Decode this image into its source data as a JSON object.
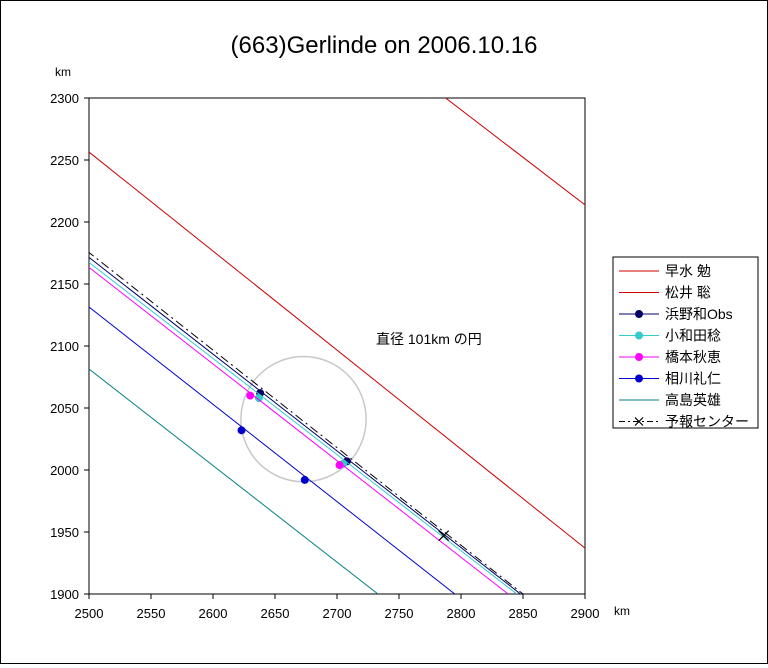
{
  "chart_data": {
    "type": "line",
    "title": "(663)Gerlinde on 2006.10.16",
    "x_unit": "km",
    "y_unit": "km",
    "xlim": [
      2500,
      2900
    ],
    "ylim": [
      1900,
      2300
    ],
    "x_ticks": [
      2500,
      2550,
      2600,
      2650,
      2700,
      2750,
      2800,
      2850,
      2900
    ],
    "y_ticks": [
      1900,
      1950,
      2000,
      2050,
      2100,
      2150,
      2200,
      2250,
      2300
    ],
    "grid": false,
    "legend_position": "right",
    "annotation": "直径 101km の円",
    "circle": {
      "center": [
        2673,
        2041
      ],
      "diameter_km": 101,
      "color": "#c8c8c8"
    },
    "series": [
      {
        "name": "早水 勉",
        "color": "#cc0000",
        "style": "solid",
        "marker": "none",
        "x": [
          2785,
          2905
        ],
        "y": [
          2302,
          2210
        ]
      },
      {
        "name": "松井 聡",
        "color": "#cc0000",
        "style": "solid",
        "marker": "none",
        "x": [
          2498,
          2905
        ],
        "y": [
          2258,
          1933
        ]
      },
      {
        "name": "浜野和Obs",
        "color": "#000066",
        "style": "solid",
        "marker": "dot",
        "x": [
          2498,
          2848
        ],
        "y": [
          2173,
          1900
        ],
        "events": [
          [
            2638,
            2062
          ],
          [
            2708,
            2007
          ]
        ]
      },
      {
        "name": "小和田稔",
        "color": "#33cccc",
        "style": "solid",
        "marker": "dot",
        "x": [
          2498,
          2845
        ],
        "y": [
          2169,
          1900
        ],
        "events": [
          [
            2637,
            2058
          ],
          [
            2705,
            2005
          ]
        ]
      },
      {
        "name": "橋本秋恵",
        "color": "#ff00ff",
        "style": "solid",
        "marker": "dot",
        "x": [
          2498,
          2838
        ],
        "y": [
          2165,
          1900
        ],
        "events": [
          [
            2630,
            2060
          ],
          [
            2702,
            2004
          ]
        ]
      },
      {
        "name": "相川礼仁",
        "color": "#0000cc",
        "style": "solid",
        "marker": "dot",
        "x": [
          2498,
          2795
        ],
        "y": [
          2133,
          1900
        ],
        "events": [
          [
            2623,
            2032
          ],
          [
            2674,
            1992
          ]
        ]
      },
      {
        "name": "高島英雄",
        "color": "#008080",
        "style": "solid",
        "marker": "none",
        "x": [
          2498,
          2733
        ],
        "y": [
          2083,
          1900
        ]
      },
      {
        "name": "予報センター",
        "color": "#000000",
        "style": "dashdot",
        "marker": "x",
        "x": [
          2498,
          2850
        ],
        "y": [
          2177,
          1900
        ],
        "events": [
          [
            2786,
            1947
          ]
        ]
      }
    ]
  }
}
